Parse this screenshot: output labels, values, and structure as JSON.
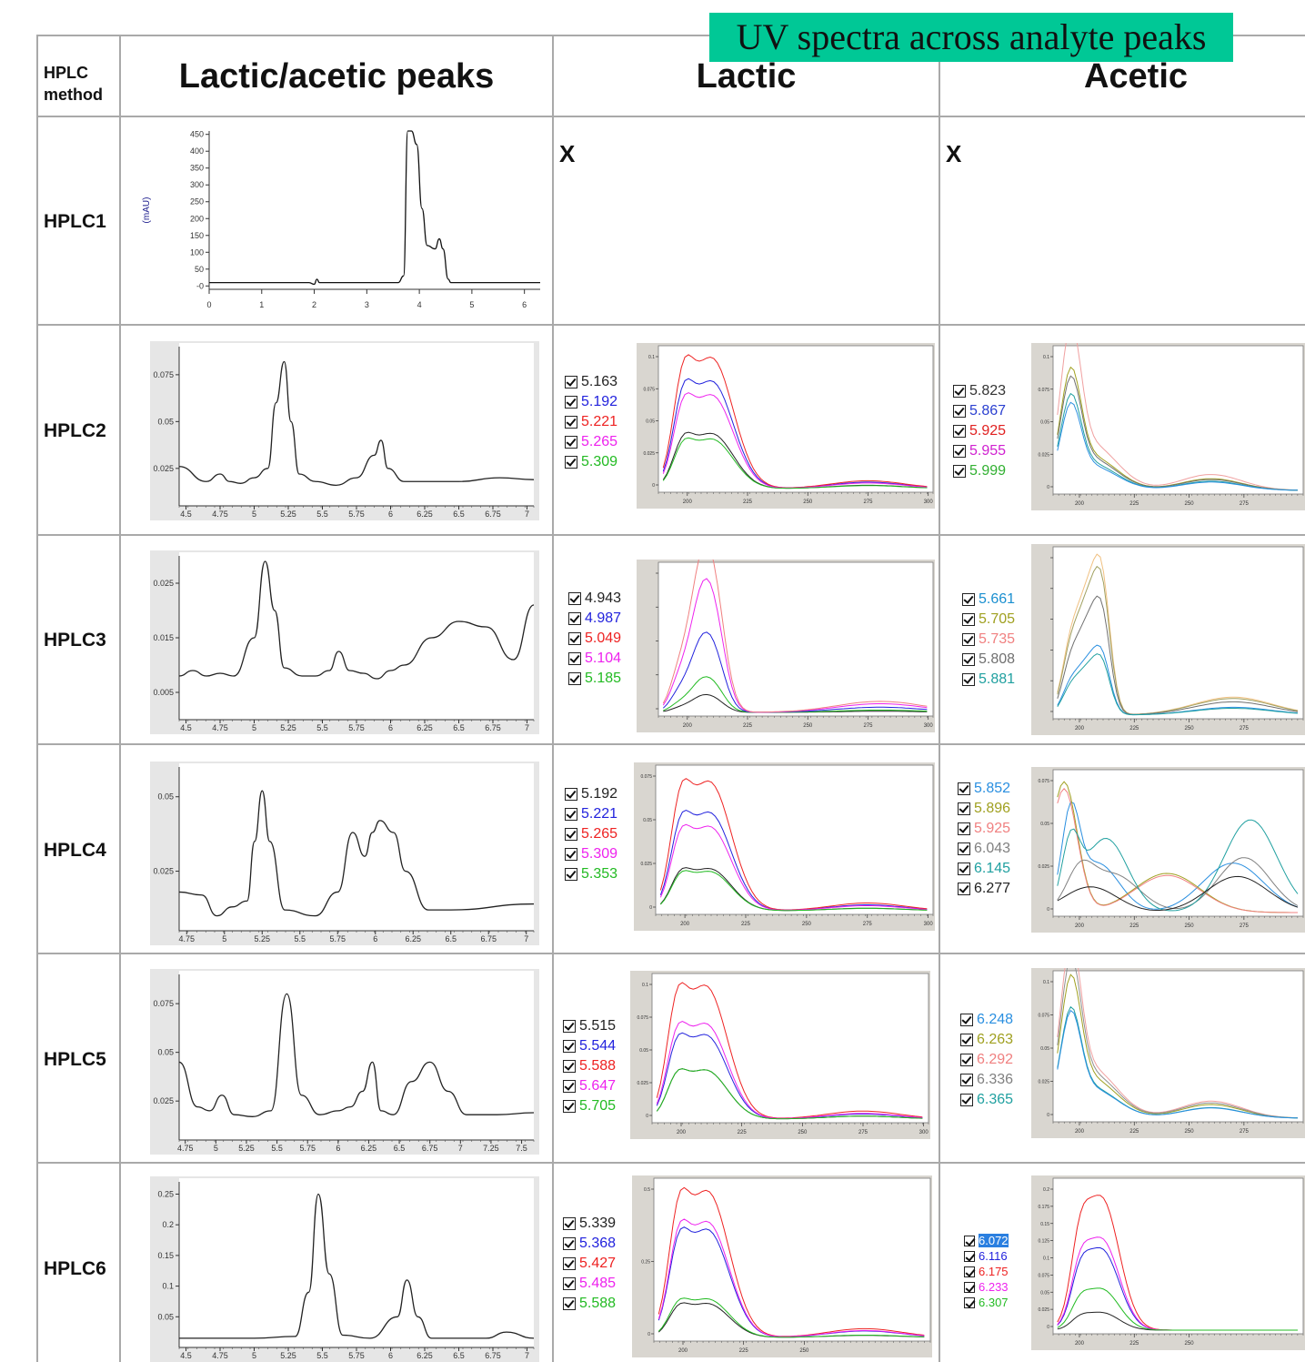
{
  "banner": "UV spectra across analyte peaks",
  "headers": {
    "method": "HPLC method",
    "method_line1": "HPLC",
    "method_line2": "method",
    "peaks": "Lactic/acetic peaks",
    "lactic": "Lactic",
    "acetic": "Acetic"
  },
  "not_available": "X",
  "rows": [
    {
      "label": "HPLC1"
    },
    {
      "label": "HPLC2",
      "lactic_times": [
        "5.163",
        "5.192",
        "5.221",
        "5.265",
        "5.309"
      ],
      "acetic_times": [
        "5.823",
        "5.867",
        "5.925",
        "5.955",
        "5.999"
      ]
    },
    {
      "label": "HPLC3",
      "lactic_times": [
        "4.943",
        "4.987",
        "5.049",
        "5.104",
        "5.185"
      ],
      "acetic_times": [
        "5.661",
        "5.705",
        "5.735",
        "5.808",
        "5.881"
      ]
    },
    {
      "label": "HPLC4",
      "lactic_times": [
        "5.192",
        "5.221",
        "5.265",
        "5.309",
        "5.353"
      ],
      "acetic_times": [
        "5.852",
        "5.896",
        "5.925",
        "6.043",
        "6.145",
        "6.277"
      ]
    },
    {
      "label": "HPLC5",
      "lactic_times": [
        "5.515",
        "5.544",
        "5.588",
        "5.647",
        "5.705"
      ],
      "acetic_times": [
        "6.248",
        "6.263",
        "6.292",
        "6.336",
        "6.365"
      ]
    },
    {
      "label": "HPLC6",
      "lactic_times": [
        "5.339",
        "5.368",
        "5.427",
        "5.485",
        "5.588"
      ],
      "acetic_times": [
        "6.072",
        "6.116",
        "6.175",
        "6.233",
        "6.307"
      ]
    }
  ],
  "colors": {
    "lactic": [
      "#222222",
      "#2222dd",
      "#ee2222",
      "#ee22ee",
      "#22bb22"
    ],
    "acetic_hplc2": [
      "#333333",
      "#2a3fd0",
      "#e02020",
      "#d020d0",
      "#30b030"
    ],
    "acetic_hplc3": [
      "#1a8fd0",
      "#a0a020",
      "#f08080",
      "#707070",
      "#20a0a0"
    ],
    "acetic_hplc4": [
      "#2a8fe0",
      "#a0a020",
      "#f08080",
      "#808080",
      "#20a0a0",
      "#222222"
    ],
    "acetic_hplc5": [
      "#2a8fe0",
      "#a0a020",
      "#f08080",
      "#808080",
      "#20a0a0"
    ],
    "acetic_hplc6": [
      "#ffffff",
      "#2222dd",
      "#ee2222",
      "#ee22ee",
      "#22bb22"
    ],
    "grid": "#a9a9a9",
    "banner_bg": "#00c896"
  },
  "chart_data": [
    {
      "id": "hplc1-chromatogram",
      "type": "line",
      "ylabel": "(mAU)",
      "x_ticks": [
        "0",
        "1",
        "2",
        "3",
        "4",
        "5",
        "6"
      ],
      "y_ticks": [
        "450",
        "400",
        "350",
        "300",
        "250",
        "200",
        "150",
        "100",
        "50",
        "-0"
      ],
      "xlim": [
        0,
        6.3
      ],
      "ylim": [
        -10,
        460
      ],
      "series": [
        {
          "x": [
            0,
            1.9,
            2.0,
            2.05,
            2.1,
            3.6,
            3.7,
            3.78,
            3.85,
            3.95,
            4.05,
            4.15,
            4.3,
            4.38,
            4.45,
            4.55,
            4.6,
            6.3
          ],
          "y": [
            10,
            10,
            5,
            20,
            10,
            10,
            30,
            460,
            460,
            420,
            230,
            120,
            110,
            140,
            110,
            20,
            10,
            10
          ]
        }
      ]
    },
    {
      "id": "hplc2-chromatogram",
      "type": "line",
      "x_ticks": [
        "4.5",
        "4.75",
        "5",
        "5.25",
        "5.5",
        "5.75",
        "6",
        "6.25",
        "6.5",
        "6.75",
        "7"
      ],
      "y_ticks": [
        "0.075",
        "0.05",
        "0.025"
      ],
      "xlim": [
        4.45,
        7.05
      ],
      "ylim": [
        0.005,
        0.09
      ],
      "series": [
        {
          "x": [
            4.45,
            4.65,
            4.75,
            4.82,
            4.9,
            5.0,
            5.1,
            5.16,
            5.22,
            5.27,
            5.33,
            5.45,
            5.6,
            5.75,
            5.88,
            5.93,
            5.98,
            6.1,
            6.5,
            6.8,
            7.05
          ],
          "y": [
            0.026,
            0.018,
            0.022,
            0.018,
            0.017,
            0.02,
            0.025,
            0.06,
            0.082,
            0.05,
            0.022,
            0.018,
            0.016,
            0.02,
            0.032,
            0.04,
            0.025,
            0.018,
            0.018,
            0.02,
            0.019
          ]
        }
      ]
    },
    {
      "id": "hplc3-chromatogram",
      "type": "line",
      "x_ticks": [
        "4.5",
        "4.75",
        "5",
        "5.25",
        "5.5",
        "5.75",
        "6",
        "6.25",
        "6.5",
        "6.75",
        "7"
      ],
      "y_ticks": [
        "0.025",
        "0.015",
        "0.005"
      ],
      "xlim": [
        4.45,
        7.05
      ],
      "ylim": [
        0,
        0.03
      ],
      "series": [
        {
          "x": [
            4.45,
            4.55,
            4.65,
            4.75,
            4.85,
            5.0,
            5.08,
            5.15,
            5.22,
            5.35,
            5.45,
            5.55,
            5.62,
            5.7,
            5.8,
            5.9,
            6.0,
            6.1,
            6.3,
            6.5,
            6.7,
            6.9,
            7.05
          ],
          "y": [
            0.008,
            0.009,
            0.008,
            0.0085,
            0.008,
            0.015,
            0.029,
            0.02,
            0.0095,
            0.008,
            0.008,
            0.009,
            0.0125,
            0.009,
            0.0085,
            0.0075,
            0.009,
            0.01,
            0.015,
            0.018,
            0.017,
            0.011,
            0.021
          ]
        }
      ]
    },
    {
      "id": "hplc4-chromatogram",
      "type": "line",
      "x_ticks": [
        "4.75",
        "5",
        "5.25",
        "5.5",
        "5.75",
        "6",
        "6.25",
        "6.5",
        "6.75",
        "7"
      ],
      "y_ticks": [
        "0.05",
        "0.025"
      ],
      "xlim": [
        4.7,
        7.05
      ],
      "ylim": [
        0.005,
        0.06
      ],
      "series": [
        {
          "x": [
            4.7,
            4.85,
            4.95,
            5.05,
            5.15,
            5.2,
            5.25,
            5.3,
            5.4,
            5.6,
            5.75,
            5.85,
            5.93,
            5.98,
            6.03,
            6.12,
            6.2,
            6.35,
            6.5,
            7.05
          ],
          "y": [
            0.018,
            0.017,
            0.01,
            0.013,
            0.015,
            0.035,
            0.052,
            0.035,
            0.012,
            0.01,
            0.018,
            0.038,
            0.03,
            0.038,
            0.042,
            0.038,
            0.025,
            0.012,
            0.012,
            0.014
          ]
        }
      ]
    },
    {
      "id": "hplc5-chromatogram",
      "type": "line",
      "x_ticks": [
        "4.75",
        "5",
        "5.25",
        "5.5",
        "5.75",
        "6",
        "6.25",
        "6.5",
        "6.75",
        "7",
        "7.25",
        "7.5"
      ],
      "y_ticks": [
        "0.075",
        "0.05",
        "0.025"
      ],
      "xlim": [
        4.7,
        7.6
      ],
      "ylim": [
        0.005,
        0.09
      ],
      "series": [
        {
          "x": [
            4.7,
            4.85,
            4.95,
            5.05,
            5.15,
            5.3,
            5.45,
            5.58,
            5.7,
            5.85,
            6.0,
            6.1,
            6.2,
            6.28,
            6.35,
            6.45,
            6.6,
            6.75,
            6.9,
            7.05,
            7.3,
            7.6
          ],
          "y": [
            0.045,
            0.022,
            0.02,
            0.028,
            0.018,
            0.017,
            0.02,
            0.08,
            0.028,
            0.018,
            0.02,
            0.022,
            0.03,
            0.045,
            0.02,
            0.018,
            0.035,
            0.045,
            0.03,
            0.018,
            0.018,
            0.019
          ]
        }
      ]
    },
    {
      "id": "hplc6-chromatogram",
      "type": "line",
      "x_ticks": [
        "4.5",
        "4.75",
        "5",
        "5.25",
        "5.5",
        "5.75",
        "6",
        "6.25",
        "6.5",
        "6.75",
        "7"
      ],
      "y_ticks": [
        "0.25",
        "0.2",
        "0.15",
        "0.1",
        "0.05"
      ],
      "xlim": [
        4.45,
        7.05
      ],
      "ylim": [
        0,
        0.27
      ],
      "series": [
        {
          "x": [
            4.45,
            5.0,
            5.3,
            5.4,
            5.47,
            5.55,
            5.65,
            5.85,
            6.05,
            6.12,
            6.2,
            6.3,
            6.7,
            6.85,
            7.05
          ],
          "y": [
            0.015,
            0.015,
            0.018,
            0.09,
            0.25,
            0.12,
            0.02,
            0.015,
            0.05,
            0.11,
            0.05,
            0.015,
            0.015,
            0.025,
            0.015
          ]
        }
      ]
    }
  ]
}
